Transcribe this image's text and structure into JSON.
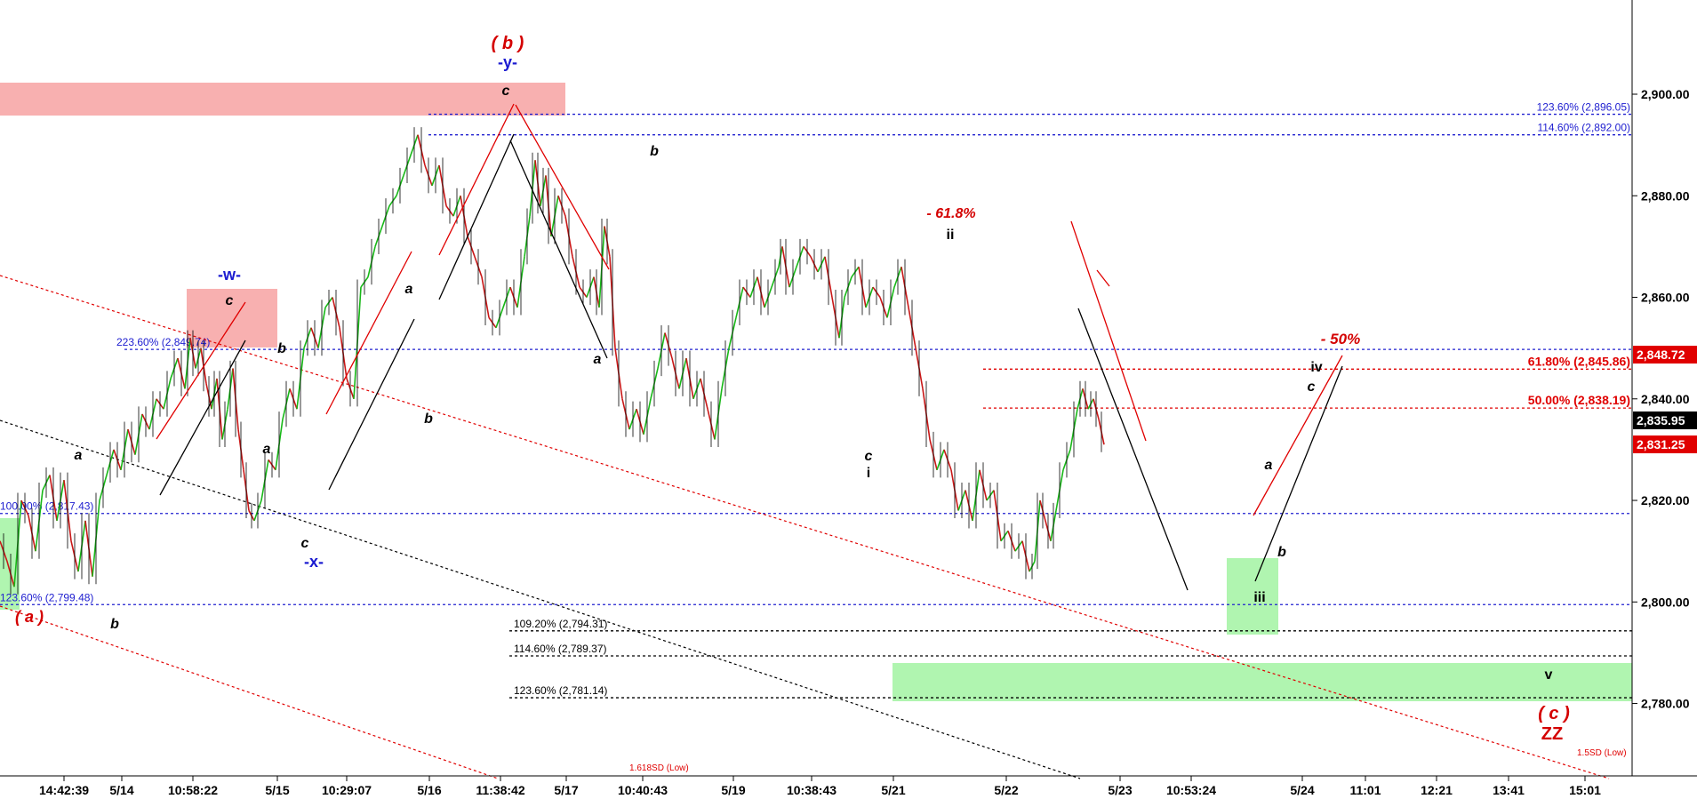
{
  "chart_data": {
    "type": "line",
    "title": "",
    "xlabel": "",
    "ylabel": "",
    "ylim": [
      2769,
      2922
    ],
    "grid": false,
    "legend": "none",
    "x_ticks": [
      "14:42:39",
      "5/14",
      "10:58:22",
      "5/15",
      "10:29:07",
      "5/16",
      "11:38:42",
      "5/17",
      "10:40:43",
      "5/19",
      "10:38:43",
      "5/21",
      "5/22",
      "5/23",
      "10:53:24",
      "5/24",
      "11:01",
      "12:21",
      "13:41",
      "15:01"
    ],
    "y_ticks": [
      {
        "value": 2900,
        "label": "2,900.00"
      },
      {
        "value": 2880,
        "label": "2,880.00"
      },
      {
        "value": 2860,
        "label": "2,860.00"
      },
      {
        "value": 2840,
        "label": "2,840.00"
      },
      {
        "value": 2820,
        "label": "2,820.00"
      },
      {
        "value": 2800,
        "label": "2,800.00"
      },
      {
        "value": 2780,
        "label": "2,780.00"
      }
    ],
    "price_badges": [
      {
        "value": 2848.72,
        "label": "2,848.72",
        "color": "#e00000"
      },
      {
        "value": 2835.95,
        "label": "2,835.95",
        "color": "#000000"
      },
      {
        "value": 2831.25,
        "label": "2,831.25",
        "color": "#e00000"
      }
    ],
    "series": [
      {
        "values": [
          [
            0,
            2812
          ],
          [
            8,
            2808
          ],
          [
            16,
            2803
          ],
          [
            24,
            2820
          ],
          [
            32,
            2817
          ],
          [
            40,
            2810
          ],
          [
            48,
            2822
          ],
          [
            56,
            2825
          ],
          [
            64,
            2816
          ],
          [
            72,
            2824
          ],
          [
            80,
            2812
          ],
          [
            88,
            2806
          ],
          [
            96,
            2816
          ],
          [
            104,
            2805
          ],
          [
            112,
            2820
          ],
          [
            120,
            2825
          ],
          [
            128,
            2830
          ],
          [
            136,
            2826
          ],
          [
            144,
            2834
          ],
          [
            152,
            2829
          ],
          [
            160,
            2837
          ],
          [
            168,
            2834
          ],
          [
            176,
            2840
          ],
          [
            184,
            2838
          ],
          [
            192,
            2844
          ],
          [
            200,
            2848
          ],
          [
            208,
            2842
          ],
          [
            214,
            2852
          ],
          [
            220,
            2846
          ],
          [
            226,
            2850
          ],
          [
            232,
            2843
          ],
          [
            238,
            2838
          ],
          [
            244,
            2844
          ],
          [
            250,
            2832
          ],
          [
            256,
            2838
          ],
          [
            262,
            2846
          ],
          [
            268,
            2834
          ],
          [
            274,
            2826
          ],
          [
            280,
            2818
          ],
          [
            286,
            2816
          ],
          [
            294,
            2820
          ],
          [
            302,
            2828
          ],
          [
            310,
            2826
          ],
          [
            318,
            2836
          ],
          [
            326,
            2842
          ],
          [
            334,
            2838
          ],
          [
            342,
            2850
          ],
          [
            350,
            2854
          ],
          [
            358,
            2850
          ],
          [
            366,
            2858
          ],
          [
            374,
            2860
          ],
          [
            382,
            2854
          ],
          [
            390,
            2844
          ],
          [
            398,
            2840
          ],
          [
            406,
            2862
          ],
          [
            414,
            2864
          ],
          [
            422,
            2870
          ],
          [
            430,
            2874
          ],
          [
            438,
            2878
          ],
          [
            446,
            2880
          ],
          [
            454,
            2884
          ],
          [
            462,
            2888
          ],
          [
            470,
            2892
          ],
          [
            478,
            2886
          ],
          [
            486,
            2882
          ],
          [
            494,
            2886
          ],
          [
            502,
            2878
          ],
          [
            510,
            2876
          ],
          [
            518,
            2880
          ],
          [
            526,
            2872
          ],
          [
            534,
            2868
          ],
          [
            542,
            2864
          ],
          [
            550,
            2856
          ],
          [
            558,
            2854
          ],
          [
            566,
            2858
          ],
          [
            574,
            2862
          ],
          [
            582,
            2858
          ],
          [
            590,
            2868
          ],
          [
            596,
            2876
          ],
          [
            602,
            2887
          ],
          [
            608,
            2878
          ],
          [
            614,
            2884
          ],
          [
            620,
            2872
          ],
          [
            628,
            2880
          ],
          [
            636,
            2876
          ],
          [
            644,
            2868
          ],
          [
            652,
            2862
          ],
          [
            660,
            2860
          ],
          [
            668,
            2864
          ],
          [
            674,
            2858
          ],
          [
            680,
            2874
          ],
          [
            686,
            2868
          ],
          [
            692,
            2850
          ],
          [
            700,
            2840
          ],
          [
            708,
            2834
          ],
          [
            716,
            2838
          ],
          [
            724,
            2833
          ],
          [
            732,
            2840
          ],
          [
            740,
            2846
          ],
          [
            748,
            2853
          ],
          [
            756,
            2848
          ],
          [
            764,
            2842
          ],
          [
            772,
            2848
          ],
          [
            780,
            2840
          ],
          [
            788,
            2844
          ],
          [
            796,
            2838
          ],
          [
            804,
            2832
          ],
          [
            812,
            2842
          ],
          [
            820,
            2850
          ],
          [
            828,
            2856
          ],
          [
            836,
            2862
          ],
          [
            844,
            2860
          ],
          [
            852,
            2864
          ],
          [
            860,
            2858
          ],
          [
            868,
            2862
          ],
          [
            876,
            2866
          ],
          [
            880,
            2870
          ],
          [
            888,
            2862
          ],
          [
            896,
            2866
          ],
          [
            904,
            2870
          ],
          [
            912,
            2868
          ],
          [
            920,
            2865
          ],
          [
            928,
            2868
          ],
          [
            936,
            2860
          ],
          [
            944,
            2852
          ],
          [
            950,
            2860
          ],
          [
            958,
            2864
          ],
          [
            966,
            2866
          ],
          [
            974,
            2858
          ],
          [
            982,
            2862
          ],
          [
            990,
            2860
          ],
          [
            998,
            2856
          ],
          [
            1006,
            2862
          ],
          [
            1014,
            2866
          ],
          [
            1022,
            2858
          ],
          [
            1030,
            2850
          ],
          [
            1038,
            2842
          ],
          [
            1046,
            2832
          ],
          [
            1054,
            2826
          ],
          [
            1062,
            2830
          ],
          [
            1070,
            2826
          ],
          [
            1078,
            2818
          ],
          [
            1086,
            2822
          ],
          [
            1094,
            2816
          ],
          [
            1102,
            2826
          ],
          [
            1110,
            2820
          ],
          [
            1118,
            2822
          ],
          [
            1126,
            2812
          ],
          [
            1134,
            2814
          ],
          [
            1142,
            2810
          ],
          [
            1150,
            2812
          ],
          [
            1158,
            2806
          ],
          [
            1164,
            2808
          ],
          [
            1170,
            2820
          ],
          [
            1176,
            2816
          ],
          [
            1182,
            2812
          ],
          [
            1188,
            2818
          ],
          [
            1196,
            2826
          ],
          [
            1204,
            2830
          ],
          [
            1212,
            2838
          ],
          [
            1218,
            2842
          ],
          [
            1224,
            2838
          ],
          [
            1230,
            2840
          ],
          [
            1236,
            2836
          ],
          [
            1242,
            2831
          ]
        ]
      }
    ],
    "hlines": [
      {
        "value": 2896.05,
        "label": "123.60% (2,896.05)",
        "style": "blue",
        "label_pos": "right"
      },
      {
        "value": 2892.0,
        "label": "114.60% (2,892.00)",
        "style": "blue",
        "label_pos": "right"
      },
      {
        "value": 2849.74,
        "label": "223.60% (2,849.74)",
        "style": "blue",
        "label_pos": "left"
      },
      {
        "value": 2845.86,
        "label": "61.80% (2,845.86)",
        "style": "red",
        "label_pos": "right"
      },
      {
        "value": 2838.19,
        "label": "50.00% (2,838.19)",
        "style": "red",
        "label_pos": "right"
      },
      {
        "value": 2817.43,
        "label": "100.00% (2,817.43)",
        "style": "blue",
        "label_pos": "left"
      },
      {
        "value": 2799.48,
        "label": "123.60% (2,799.48)",
        "style": "blue",
        "label_pos": "left"
      },
      {
        "value": 2794.31,
        "label": "109.20% (2,794.31)",
        "style": "black",
        "label_pos": "mid"
      },
      {
        "value": 2789.37,
        "label": "114.60% (2,789.37)",
        "style": "black",
        "label_pos": "mid"
      },
      {
        "value": 2781.14,
        "label": "123.60% (2,781.14)",
        "style": "black",
        "label_pos": "mid"
      }
    ],
    "channel_labels": [
      "1.618SD (Low)",
      "1.5SD (Low)"
    ],
    "annotations": [
      {
        "text": "( b )",
        "color": "#d40000"
      },
      {
        "text": "-y-",
        "color": "#1a1ad0"
      },
      {
        "text": "c",
        "color": "#000000"
      },
      {
        "text": "-w-",
        "color": "#1a1ad0"
      },
      {
        "text": "c",
        "color": "#000000"
      },
      {
        "text": "b",
        "color": "#000000"
      },
      {
        "text": "a",
        "color": "#000000"
      },
      {
        "text": "a",
        "color": "#000000"
      },
      {
        "text": "c",
        "color": "#000000"
      },
      {
        "text": "-x-",
        "color": "#1a1ad0"
      },
      {
        "text": "a",
        "color": "#000000"
      },
      {
        "text": "b",
        "color": "#000000"
      },
      {
        "text": "( a )",
        "color": "#d40000"
      },
      {
        "text": "b",
        "color": "#000000"
      },
      {
        "text": "b",
        "color": "#000000"
      },
      {
        "text": "a",
        "color": "#000000"
      },
      {
        "text": "- 61.8%",
        "color": "#d40000"
      },
      {
        "text": "ii",
        "color": "#000000"
      },
      {
        "text": "c",
        "color": "#000000"
      },
      {
        "text": "i",
        "color": "#000000"
      },
      {
        "text": "- 50%",
        "color": "#d40000"
      },
      {
        "text": "iv",
        "color": "#000000"
      },
      {
        "text": "c",
        "color": "#000000"
      },
      {
        "text": "a",
        "color": "#000000"
      },
      {
        "text": "b",
        "color": "#000000"
      },
      {
        "text": "iii",
        "color": "#000000"
      },
      {
        "text": "v",
        "color": "#000000"
      },
      {
        "text": "( c )",
        "color": "#d40000"
      },
      {
        "text": "ZZ",
        "color": "#d40000"
      }
    ]
  }
}
